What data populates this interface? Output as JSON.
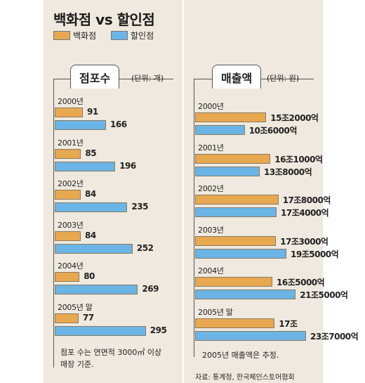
{
  "title": "백화점 vs 할인점",
  "legend": {
    "dept": "백화점",
    "disc": "할인점"
  },
  "colors": {
    "dept": "#e8a850",
    "disc": "#6ab4e6",
    "panel": "#efe9df"
  },
  "chart_data": [
    {
      "type": "bar",
      "orientation": "horizontal",
      "title": "점포수",
      "unit": "(단위: 개)",
      "categories": [
        "2000년",
        "2001년",
        "2002년",
        "2003년",
        "2004년",
        "2005년 말"
      ],
      "series": [
        {
          "name": "백화점",
          "values": [
            91,
            85,
            84,
            84,
            80,
            77
          ],
          "labels": [
            "91",
            "85",
            "84",
            "84",
            "80",
            "77"
          ]
        },
        {
          "name": "할인점",
          "values": [
            166,
            196,
            235,
            252,
            269,
            295
          ],
          "labels": [
            "166",
            "196",
            "235",
            "252",
            "269",
            "295"
          ]
        }
      ],
      "note": [
        "점포 수는 연면적 3000㎡ 이상",
        "매장 기준."
      ]
    },
    {
      "type": "bar",
      "orientation": "horizontal",
      "title": "매출액",
      "unit": "(단위: 원)",
      "categories": [
        "2000년",
        "2001년",
        "2002년",
        "2003년",
        "2004년",
        "2005년 말"
      ],
      "series": [
        {
          "name": "백화점",
          "values": [
            152000,
            161000,
            178000,
            173000,
            165000,
            170000
          ],
          "labels": [
            "15조2000억",
            "16조1000억",
            "17조8000억",
            "17조3000억",
            "16조5000억",
            "17조"
          ]
        },
        {
          "name": "할인점",
          "values": [
            106000,
            138000,
            174000,
            195000,
            215000,
            237000
          ],
          "labels": [
            "10조6000억",
            "13조8000억",
            "17조4000억",
            "19조5000억",
            "21조5000억",
            "23조7000억"
          ]
        }
      ],
      "note": [
        "2005년 매출액은 추정."
      ]
    }
  ],
  "source": "자료: 통계청, 한국체인스토어협회"
}
